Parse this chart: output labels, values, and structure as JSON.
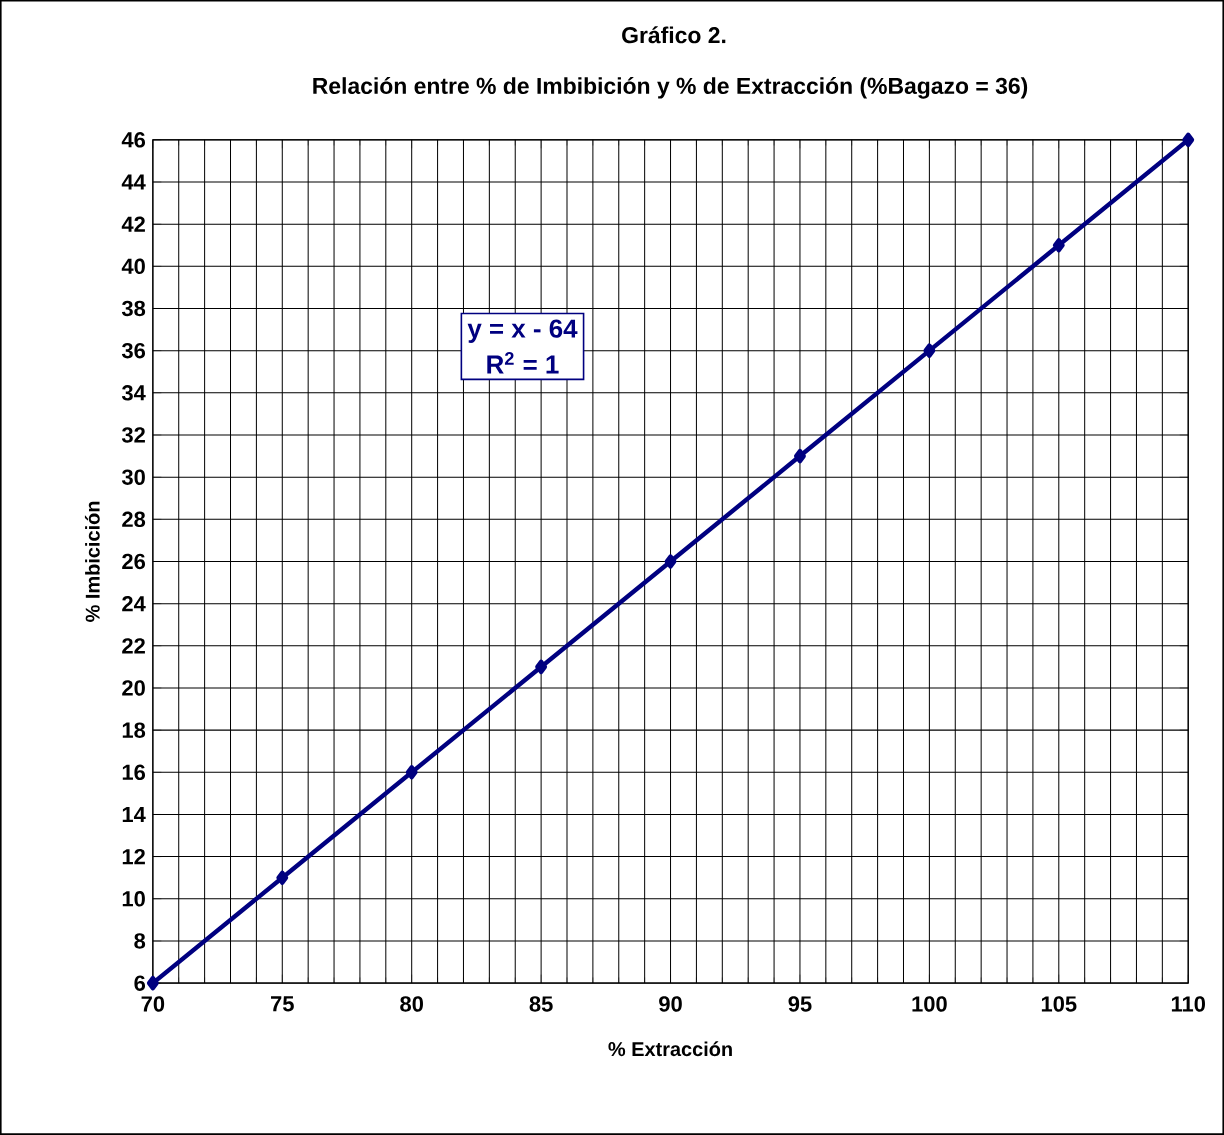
{
  "chart_data": {
    "type": "line",
    "title": "Gráfico 2.",
    "subtitle": "Relación entre %  de Imbibición y % de Extracción (%Bagazo = 36)",
    "xlabel": "% Extracción",
    "ylabel": "% Imbicición",
    "x": [
      70,
      75,
      80,
      85,
      90,
      95,
      100,
      105,
      110
    ],
    "series": [
      {
        "color": "#000080",
        "values": [
          6,
          11,
          16,
          21,
          26,
          31,
          36,
          41,
          46
        ]
      }
    ],
    "xlim": [
      70,
      110
    ],
    "ylim": [
      6,
      46
    ],
    "xticks": [
      70,
      75,
      80,
      85,
      90,
      95,
      100,
      105,
      110
    ],
    "yticks": [
      6,
      8,
      10,
      12,
      14,
      16,
      18,
      20,
      22,
      24,
      26,
      28,
      30,
      32,
      34,
      36,
      38,
      40,
      42,
      44,
      46
    ],
    "grid": true,
    "marker": "diamond",
    "line_style": "solid",
    "annotations": [
      "y = x - 64",
      "R$^{2}$ = 1"
    ]
  }
}
